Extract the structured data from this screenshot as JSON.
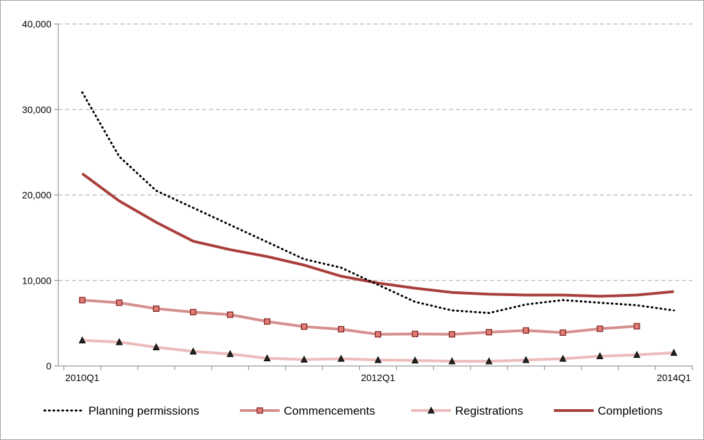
{
  "chart_data": {
    "type": "line",
    "title": "",
    "xlabel": "",
    "ylabel": "",
    "x": [
      "2010Q1",
      "2010Q2",
      "2010Q3",
      "2010Q4",
      "2011Q1",
      "2011Q2",
      "2011Q3",
      "2011Q4",
      "2012Q1",
      "2012Q2",
      "2012Q3",
      "2012Q4",
      "2013Q1",
      "2013Q2",
      "2013Q3",
      "2013Q4",
      "2014Q1"
    ],
    "x_tick_labels": [
      "2010Q1",
      "2012Q1",
      "2014Q1"
    ],
    "y_tick_labels": [
      "0",
      "10,000",
      "20,000",
      "30,000",
      "40,000"
    ],
    "ylim": [
      0,
      40000
    ],
    "grid": "horizontal dashed",
    "legend_position": "bottom",
    "series": [
      {
        "name": "Planning permissions",
        "style": "dotted",
        "color": "#000000",
        "values": [
          32000,
          24500,
          20500,
          18500,
          16500,
          14500,
          12500,
          11500,
          9500,
          7500,
          6500,
          6200,
          7200,
          7700,
          7400,
          7100,
          6500
        ]
      },
      {
        "name": "Commencements",
        "style": "solid-square",
        "color": "#d4908e",
        "values": [
          7700,
          7400,
          6700,
          6300,
          6000,
          5200,
          4600,
          4300,
          3700,
          3750,
          3700,
          3950,
          4150,
          3900,
          4350,
          4650,
          null
        ]
      },
      {
        "name": "Registrations",
        "style": "solid-triangle",
        "color": "#ecbcbb",
        "values": [
          3000,
          2800,
          2200,
          1700,
          1400,
          900,
          750,
          850,
          700,
          650,
          550,
          550,
          700,
          850,
          1150,
          1300,
          1550
        ]
      },
      {
        "name": "Completions",
        "style": "solid",
        "color": "#a83f3b",
        "values": [
          22500,
          19300,
          16800,
          14600,
          13600,
          12800,
          11800,
          10500,
          9700,
          9100,
          8600,
          8400,
          8300,
          8300,
          8150,
          8300,
          8700
        ]
      }
    ]
  }
}
